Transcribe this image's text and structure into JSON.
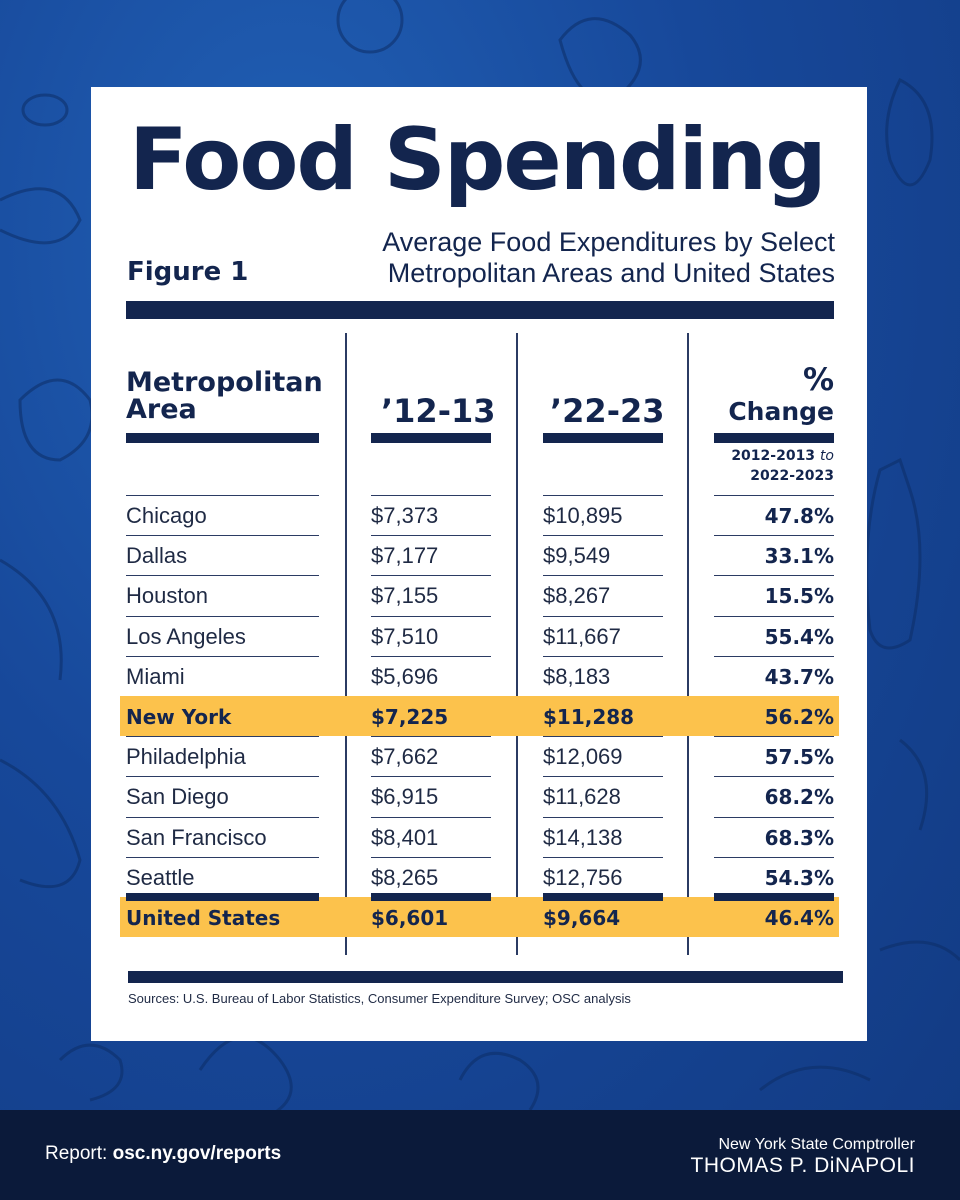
{
  "title": "Food Spending",
  "figure_label": "Figure 1",
  "subtitle_line1": "Average Food Expenditures by Select",
  "subtitle_line2": "Metropolitan Areas and United States",
  "headers": {
    "area_line1": "Metropolitan",
    "area_line2": "Area",
    "y1": "’12-13",
    "y2": "’22-23",
    "pct_line1": "%",
    "pct_line2": "Change",
    "range_line1_a": "2012-2013",
    "range_line1_b": "to",
    "range_line2": "2022-2023"
  },
  "chart_data": {
    "type": "table",
    "title": "Food Spending",
    "subtitle": "Average Food Expenditures by Select Metropolitan Areas and United States",
    "columns": [
      "Metropolitan Area",
      "’12-13",
      "’22-23",
      "% Change 2012-2013 to 2022-2023"
    ],
    "rows": [
      {
        "area": "Chicago",
        "y1": "$7,373",
        "y2": "$10,895",
        "pct": "47.8%",
        "highlight": false
      },
      {
        "area": "Dallas",
        "y1": "$7,177",
        "y2": "$9,549",
        "pct": "33.1%",
        "highlight": false
      },
      {
        "area": "Houston",
        "y1": "$7,155",
        "y2": "$8,267",
        "pct": "15.5%",
        "highlight": false
      },
      {
        "area": "Los Angeles",
        "y1": "$7,510",
        "y2": "$11,667",
        "pct": "55.4%",
        "highlight": false
      },
      {
        "area": "Miami",
        "y1": "$5,696",
        "y2": "$8,183",
        "pct": "43.7%",
        "highlight": false
      },
      {
        "area": "New York",
        "y1": "$7,225",
        "y2": "$11,288",
        "pct": "56.2%",
        "highlight": true
      },
      {
        "area": "Philadelphia",
        "y1": "$7,662",
        "y2": "$12,069",
        "pct": "57.5%",
        "highlight": false
      },
      {
        "area": "San Diego",
        "y1": "$6,915",
        "y2": "$11,628",
        "pct": "68.2%",
        "highlight": false
      },
      {
        "area": "San Francisco",
        "y1": "$8,401",
        "y2": "$14,138",
        "pct": "68.3%",
        "highlight": false
      },
      {
        "area": "Seattle",
        "y1": "$8,265",
        "y2": "$12,756",
        "pct": "54.3%",
        "highlight": false
      },
      {
        "area": "United States",
        "y1": "$6,601",
        "y2": "$9,664",
        "pct": "46.4%",
        "highlight": true
      }
    ]
  },
  "source": "Sources: U.S. Bureau of Labor Statistics, Consumer Expenditure Survey; OSC analysis",
  "footer": {
    "report_label": "Report:",
    "report_link": "osc.ny.gov/reports",
    "brand_top": "New York State Comptroller",
    "brand_name": "THOMAS P. DiNAPOLI"
  },
  "colors": {
    "background": "#1a4d9a",
    "navy": "#13254e",
    "highlight": "#fcc24c",
    "footer": "#0b1a3a"
  }
}
